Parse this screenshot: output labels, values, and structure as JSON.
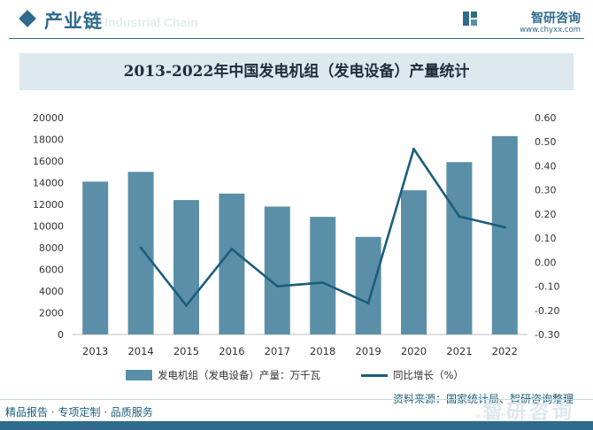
{
  "header": {
    "section_title": "产业链",
    "ghost_text": "Industrial Chain",
    "brand_name": "智研咨询",
    "brand_url": "www.chyxx.com"
  },
  "chart_data": {
    "type": "bar",
    "title": "2013-2022年中国发电机组（发电设备）产量统计",
    "categories": [
      "2013",
      "2014",
      "2015",
      "2016",
      "2017",
      "2018",
      "2019",
      "2020",
      "2021",
      "2022"
    ],
    "series": [
      {
        "name": "发电机组（发电设备）产量：万千瓦",
        "type": "bar",
        "axis": "left",
        "values": [
          14100,
          15000,
          12400,
          13000,
          11800,
          10850,
          9000,
          13300,
          15900,
          18300
        ]
      },
      {
        "name": "同比增长（%）",
        "type": "line",
        "axis": "right",
        "values": [
          null,
          0.06,
          -0.18,
          0.055,
          -0.1,
          -0.085,
          -0.17,
          0.47,
          0.19,
          0.145
        ]
      }
    ],
    "y_left": {
      "min": 0,
      "max": 20000,
      "ticks": [
        "0",
        "2000",
        "4000",
        "6000",
        "8000",
        "10000",
        "12000",
        "14000",
        "16000",
        "18000",
        "20000"
      ]
    },
    "y_right": {
      "min": -0.3,
      "max": 0.6,
      "ticks": [
        "-0.30",
        "-0.20",
        "-0.10",
        "0.00",
        "0.10",
        "0.20",
        "0.30",
        "0.40",
        "0.50",
        "0.60"
      ]
    },
    "grid": false,
    "legend": "bottom",
    "colors": {
      "bar": "#5b8fa8",
      "line": "#1b5e7b"
    }
  },
  "source": "资料来源：国家统计局、智研咨询整理",
  "footer": {
    "left_text": "精品报告 · 专项定制 · 品质服务",
    "brand": "智研咨询",
    "url": "www.chyxx.com"
  }
}
